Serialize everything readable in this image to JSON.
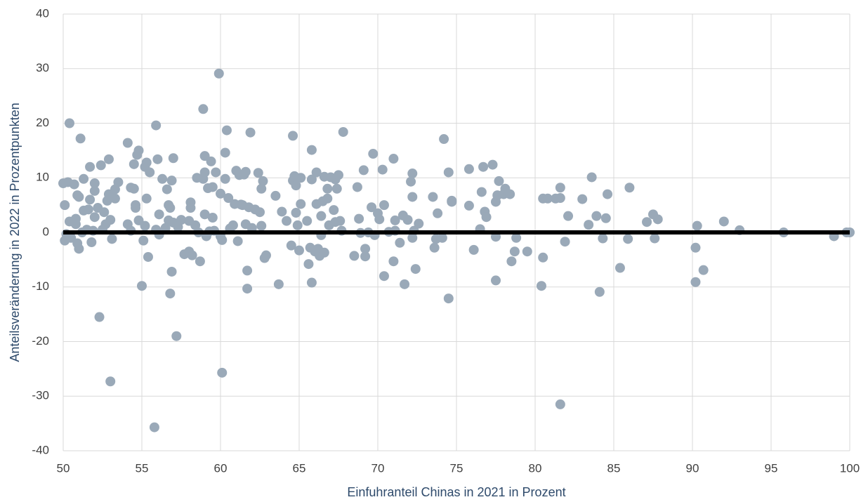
{
  "chart_data": {
    "type": "scatter",
    "xlabel": "Einfuhranteil Chinas in 2021 in Prozent",
    "ylabel": "Anteilsveränderung in 2022 in Prozentpunkten",
    "color": "#9aa9b8",
    "grid": true,
    "xlim": [
      50,
      100
    ],
    "xticks": [
      50,
      55,
      60,
      65,
      70,
      75,
      80,
      85,
      90,
      95,
      100
    ],
    "ylim": [
      -40,
      40
    ],
    "yticks": [
      -40,
      -30,
      -20,
      -10,
      0,
      10,
      20,
      30,
      40
    ],
    "x": [
      50.0,
      50.1,
      50.2,
      50.1,
      50.4,
      50.4,
      50.3,
      50.5,
      50.7,
      50.8,
      50.8,
      50.9,
      51.0,
      51.0,
      50.9,
      51.1,
      51.2,
      51.3,
      51.3,
      51.5,
      51.6,
      51.7,
      51.7,
      51.8,
      51.9,
      52.0,
      52.0,
      52.0,
      52.2,
      52.3,
      52.4,
      52.5,
      52.6,
      52.7,
      52.8,
      52.9,
      52.9,
      53.0,
      53.0,
      53.1,
      53.3,
      53.3,
      53.5,
      54.1,
      54.1,
      54.3,
      54.3,
      54.5,
      54.5,
      54.6,
      54.6,
      54.7,
      54.8,
      54.8,
      55.0,
      55.1,
      55.2,
      55.2,
      55.3,
      55.3,
      55.4,
      55.5,
      55.8,
      55.9,
      55.9,
      56.0,
      56.1,
      56.1,
      56.3,
      56.5,
      56.6,
      56.7,
      56.7,
      56.8,
      56.8,
      56.9,
      56.9,
      57.0,
      57.0,
      57.2,
      57.3,
      57.5,
      57.7,
      58.0,
      58.0,
      58.1,
      58.1,
      58.2,
      58.4,
      58.5,
      58.6,
      58.7,
      58.9,
      58.9,
      59.0,
      59.0,
      59.0,
      59.1,
      59.2,
      59.3,
      59.4,
      59.5,
      59.5,
      59.6,
      59.7,
      59.9,
      60.0,
      60.0,
      60.1,
      60.1,
      60.3,
      60.3,
      60.4,
      60.5,
      60.6,
      60.8,
      60.9,
      61.0,
      61.1,
      61.2,
      61.3,
      61.4,
      61.5,
      61.6,
      61.6,
      61.7,
      61.7,
      61.8,
      61.9,
      62.0,
      62.2,
      62.4,
      62.5,
      62.6,
      62.6,
      62.7,
      62.8,
      62.9,
      63.5,
      63.7,
      63.9,
      64.2,
      64.5,
      64.6,
      64.6,
      64.7,
      64.8,
      64.8,
      64.9,
      65.0,
      65.1,
      65.1,
      65.5,
      65.6,
      65.7,
      65.8,
      65.8,
      65.8,
      66.0,
      66.1,
      66.1,
      66.2,
      66.3,
      66.4,
      66.4,
      66.5,
      66.6,
      66.6,
      66.8,
      66.8,
      66.9,
      67.0,
      67.2,
      67.3,
      67.3,
      67.4,
      67.5,
      67.6,
      67.7,
      67.8,
      68.5,
      68.7,
      68.8,
      68.9,
      69.1,
      69.2,
      69.2,
      69.4,
      69.6,
      69.7,
      69.8,
      70.0,
      70.1,
      70.3,
      70.4,
      70.4,
      70.7,
      71.0,
      71.0,
      71.1,
      71.1,
      71.4,
      71.6,
      71.7,
      71.9,
      72.1,
      72.2,
      72.2,
      72.2,
      72.3,
      72.4,
      72.6,
      73.5,
      73.6,
      73.7,
      73.8,
      74.1,
      74.2,
      74.5,
      74.5,
      74.7,
      74.7,
      75.8,
      75.8,
      76.1,
      76.5,
      76.6,
      76.7,
      76.8,
      76.9,
      77.3,
      77.5,
      77.5,
      77.5,
      77.6,
      77.7,
      78.0,
      78.1,
      78.4,
      78.5,
      78.7,
      78.8,
      79.5,
      80.4,
      80.5,
      80.5,
      80.8,
      81.3,
      81.6,
      81.6,
      81.6,
      81.9,
      82.1,
      83.0,
      83.4,
      83.6,
      83.9,
      84.1,
      84.3,
      84.5,
      84.6,
      85.4,
      85.9,
      86.0,
      87.1,
      87.5,
      87.6,
      87.8,
      90.2,
      90.2,
      90.3,
      90.7,
      92.0,
      93.0,
      95.8,
      99.0,
      99.8,
      100.0
    ],
    "values": [
      9,
      5,
      -0.3,
      -1.5,
      2,
      20,
      9.2,
      -1,
      8.8,
      1.5,
      2.5,
      6.8,
      6.5,
      -3,
      -2,
      17.2,
      0,
      9.8,
      4,
      0.5,
      4.2,
      6,
      12,
      -1.8,
      0.3,
      9,
      7.6,
      2.8,
      4.5,
      -15.5,
      12.3,
      0.5,
      3.7,
      1.5,
      5.8,
      13.4,
      7,
      2.3,
      -27.3,
      -1.2,
      6.2,
      7.9,
      9.2,
      16.4,
      1.5,
      8.2,
      0.3,
      12.5,
      8,
      4.5,
      5,
      14.2,
      15,
      2.2,
      -9.8,
      -1.5,
      1.2,
      12,
      12.8,
      6.2,
      -4.5,
      11,
      -35.7,
      19.6,
      0.5,
      13.4,
      -0.4,
      3.3,
      9.8,
      0.8,
      7.9,
      5,
      2.2,
      4.5,
      -11.2,
      -7.2,
      9.5,
      13.6,
      1.8,
      -19,
      1,
      2.3,
      -4,
      -3.5,
      2.1,
      5.5,
      4.5,
      -4.2,
      1.3,
      10,
      0,
      -5.3,
      22.6,
      9.8,
      14,
      11,
      3.3,
      -0.7,
      8.1,
      0.2,
      13,
      8.3,
      2.7,
      0.3,
      11,
      29.1,
      -0.7,
      7.1,
      -1.4,
      -25.7,
      9.8,
      14.6,
      18.7,
      6.3,
      0.7,
      1.3,
      5.2,
      11.3,
      -1.6,
      10.5,
      5.1,
      5,
      10.6,
      1.5,
      11.1,
      -7,
      -10.3,
      4.6,
      18.3,
      0.8,
      4.2,
      10.9,
      3.7,
      8,
      1.2,
      9.4,
      -4.7,
      -4.2,
      6.7,
      -9.5,
      3.8,
      2.1,
      -2.4,
      17.7,
      9.5,
      10.3,
      3.6,
      8.6,
      1.3,
      -3.3,
      10,
      5.2,
      2.1,
      -5.8,
      -2.8,
      9.7,
      -9.2,
      15.1,
      -3.5,
      11,
      5.2,
      -3,
      -4.3,
      3,
      -0.5,
      5.7,
      -3.7,
      10.2,
      8,
      6.2,
      1.3,
      10.1,
      4.1,
      9.7,
      1.9,
      8,
      10.5,
      2.1,
      0.3,
      18.4,
      -4.3,
      8.3,
      2.5,
      -0.1,
      11.4,
      -3,
      -4.4,
      0,
      4.6,
      14.4,
      -0.5,
      3.5,
      2.4,
      11.5,
      5,
      -8,
      0.1,
      13.5,
      -5.3,
      0.3,
      2.2,
      -1.9,
      3.1,
      -9.5,
      2.3,
      9.3,
      10.8,
      6.5,
      -1,
      0.3,
      -6.7,
      1.6,
      6.5,
      -2.8,
      -1.2,
      3.5,
      -1,
      17.1,
      11,
      -12.1,
      5.8,
      5.6,
      11.6,
      4.9,
      -3.2,
      0.6,
      7.4,
      12,
      3.8,
      2.8,
      12.4,
      5.6,
      -0.8,
      -8.8,
      6.8,
      9.4,
      7,
      8,
      7,
      -5.3,
      -3.5,
      -1,
      -3.5,
      -9.8,
      6.2,
      -4.6,
      6.2,
      6.2,
      -31.5,
      8.2,
      6.3,
      -1.7,
      3,
      6.1,
      1.4,
      10.1,
      3,
      -10.9,
      -1.1,
      2.6,
      7,
      -6.5,
      -1.2,
      8.2,
      1.9,
      3.3,
      -1.1,
      2.4,
      -9.1,
      -2.8,
      1.2,
      -6.9,
      2,
      0.4,
      0,
      -0.7,
      0,
      0
    ]
  }
}
